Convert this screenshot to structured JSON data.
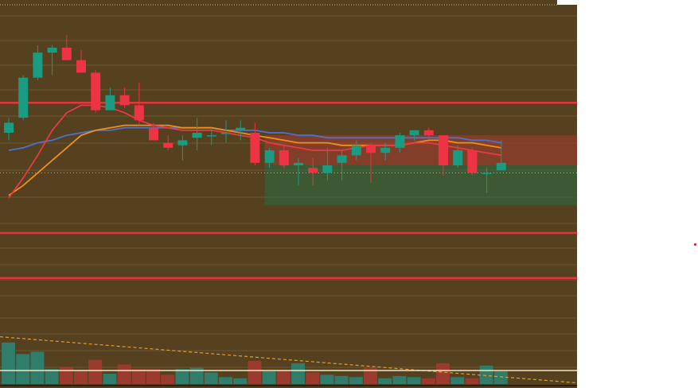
{
  "colors": {
    "background": "#55401f",
    "grid": "#8f7a4a",
    "up": "#1a9c82",
    "down": "#ee3344",
    "ma_red": "#e83a44",
    "ma_orange": "#f0901a",
    "ma_blue": "#4a73d0",
    "level_line": "#e8323c",
    "zone_red": "rgba(170,60,50,0.55)",
    "zone_green": "rgba(40,110,70,0.55)",
    "volume_up": "#2f7d6a",
    "volume_down": "#9b3b2e",
    "volume_trend": "#e0a030",
    "marker": "#cc1122"
  },
  "chart_data": {
    "type": "candlestick",
    "candles": [
      {
        "o": 4.0,
        "h": 4.6,
        "l": 3.7,
        "c": 4.4
      },
      {
        "o": 4.6,
        "h": 6.3,
        "l": 4.5,
        "c": 6.2
      },
      {
        "o": 6.2,
        "h": 7.5,
        "l": 6.1,
        "c": 7.2
      },
      {
        "o": 7.2,
        "h": 7.5,
        "l": 6.3,
        "c": 7.4
      },
      {
        "o": 7.4,
        "h": 7.9,
        "l": 6.9,
        "c": 6.9
      },
      {
        "o": 6.9,
        "h": 7.3,
        "l": 6.4,
        "c": 6.4
      },
      {
        "o": 6.4,
        "h": 6.5,
        "l": 4.8,
        "c": 4.9
      },
      {
        "o": 4.9,
        "h": 5.8,
        "l": 4.9,
        "c": 5.5
      },
      {
        "o": 5.5,
        "h": 5.8,
        "l": 5.0,
        "c": 5.1
      },
      {
        "o": 5.1,
        "h": 6.0,
        "l": 4.3,
        "c": 4.5
      },
      {
        "o": 4.2,
        "h": 4.4,
        "l": 3.7,
        "c": 3.7
      },
      {
        "o": 3.6,
        "h": 3.9,
        "l": 3.3,
        "c": 3.4
      },
      {
        "o": 3.5,
        "h": 3.9,
        "l": 2.9,
        "c": 3.7
      },
      {
        "o": 3.8,
        "h": 4.6,
        "l": 3.3,
        "c": 4.0
      },
      {
        "o": 3.9,
        "h": 4.2,
        "l": 3.5,
        "c": 3.9
      },
      {
        "o": 4.0,
        "h": 4.5,
        "l": 3.6,
        "c": 4.0
      },
      {
        "o": 4.1,
        "h": 4.5,
        "l": 3.7,
        "c": 4.2
      },
      {
        "o": 4.0,
        "h": 4.4,
        "l": 2.7,
        "c": 2.8
      },
      {
        "o": 2.8,
        "h": 3.4,
        "l": 2.6,
        "c": 3.3
      },
      {
        "o": 3.3,
        "h": 3.5,
        "l": 2.6,
        "c": 2.7
      },
      {
        "o": 2.7,
        "h": 3.0,
        "l": 1.9,
        "c": 2.8
      },
      {
        "o": 2.6,
        "h": 3.0,
        "l": 1.9,
        "c": 2.4
      },
      {
        "o": 2.4,
        "h": 3.4,
        "l": 2.1,
        "c": 2.7
      },
      {
        "o": 2.8,
        "h": 3.3,
        "l": 2.1,
        "c": 3.1
      },
      {
        "o": 3.1,
        "h": 3.7,
        "l": 2.9,
        "c": 3.5
      },
      {
        "o": 3.5,
        "h": 3.6,
        "l": 2.0,
        "c": 3.2
      },
      {
        "o": 3.2,
        "h": 3.6,
        "l": 2.9,
        "c": 3.4
      },
      {
        "o": 3.4,
        "h": 4.0,
        "l": 3.2,
        "c": 3.9
      },
      {
        "o": 3.9,
        "h": 4.1,
        "l": 3.7,
        "c": 4.1
      },
      {
        "o": 4.1,
        "h": 4.2,
        "l": 3.8,
        "c": 3.9
      },
      {
        "o": 3.9,
        "h": 3.9,
        "l": 2.3,
        "c": 2.7
      },
      {
        "o": 2.7,
        "h": 3.5,
        "l": 2.6,
        "c": 3.3
      },
      {
        "o": 3.3,
        "h": 3.4,
        "l": 2.3,
        "c": 2.4
      },
      {
        "o": 2.4,
        "h": 2.6,
        "l": 1.6,
        "c": 2.4
      },
      {
        "o": 2.5,
        "h": 3.7,
        "l": 2.5,
        "c": 2.8
      }
    ],
    "ma_red": [
      1.4,
      2.2,
      3.1,
      4.1,
      4.8,
      5.1,
      5.1,
      5.0,
      4.8,
      4.5,
      4.3,
      4.2,
      4.1,
      4.1,
      4.1,
      4.0,
      3.9,
      3.8,
      3.6,
      3.5,
      3.4,
      3.3,
      3.3,
      3.3,
      3.4,
      3.5,
      3.5,
      3.5,
      3.6,
      3.6,
      3.5,
      3.4,
      3.3,
      3.2,
      3.1
    ],
    "ma_orange": [
      1.5,
      1.9,
      2.4,
      2.9,
      3.4,
      3.9,
      4.1,
      4.2,
      4.3,
      4.3,
      4.3,
      4.3,
      4.2,
      4.2,
      4.2,
      4.1,
      4.0,
      3.9,
      3.8,
      3.7,
      3.6,
      3.6,
      3.6,
      3.5,
      3.5,
      3.5,
      3.5,
      3.5,
      3.6,
      3.7,
      3.7,
      3.6,
      3.6,
      3.5,
      3.4
    ],
    "ma_blue": [
      3.3,
      3.4,
      3.6,
      3.7,
      3.9,
      4.0,
      4.1,
      4.1,
      4.2,
      4.2,
      4.2,
      4.2,
      4.2,
      4.2,
      4.2,
      4.1,
      4.1,
      4.1,
      4.0,
      4.0,
      3.9,
      3.9,
      3.8,
      3.8,
      3.8,
      3.8,
      3.8,
      3.8,
      3.8,
      3.8,
      3.8,
      3.8,
      3.7,
      3.7,
      3.6
    ],
    "levels": [
      5.2,
      0.0,
      -1.8
    ],
    "dotted_level": 2.4,
    "zone": {
      "from_index": 18,
      "upper": [
        2.7,
        3.9
      ],
      "lower": [
        1.1,
        2.7
      ]
    },
    "volume": [
      36,
      26,
      28,
      13,
      15,
      12,
      21,
      9,
      17,
      13,
      13,
      8,
      13,
      14,
      10,
      6,
      5,
      20,
      11,
      12,
      18,
      10,
      8,
      7,
      6,
      14,
      5,
      7,
      6,
      5,
      18,
      6,
      5,
      16,
      11
    ],
    "volume_trend": [
      41,
      1
    ]
  }
}
